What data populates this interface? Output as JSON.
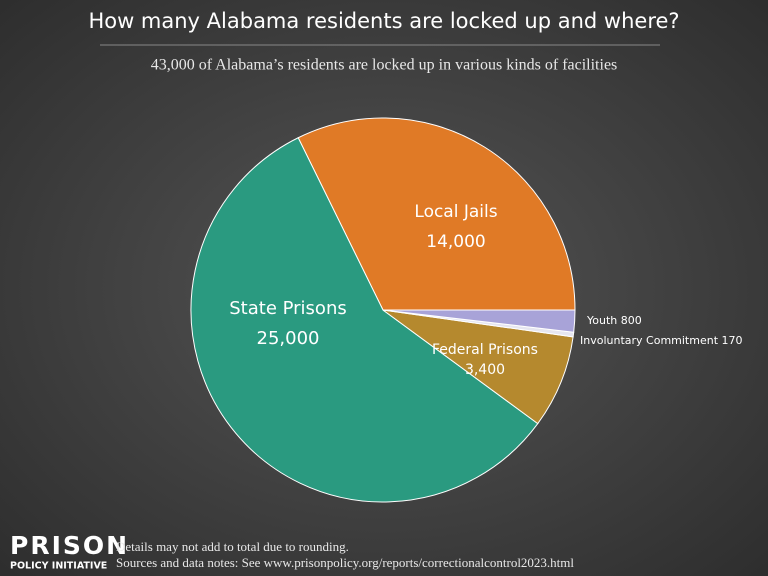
{
  "chart_data": {
    "type": "pie",
    "title": "How many Alabama residents are locked up and where?",
    "subtitle": "43,000 of Alabama’s residents are locked up in various kinds of facilities",
    "categories": [
      "Local Jails",
      "State Prisons",
      "Federal Prisons",
      "Involuntary Commitment",
      "Youth"
    ],
    "values": [
      14000,
      25000,
      3400,
      170,
      800
    ],
    "value_labels": [
      "14,000",
      "25,000",
      "3,400",
      "170",
      "800"
    ],
    "colors": [
      "#e07a26",
      "#2a9a80",
      "#b5892e",
      "#e6e6f0",
      "#a8a3d8"
    ]
  },
  "footer": {
    "logo_top": "PRISON",
    "logo_bottom": "POLICY INITIATIVE",
    "notes": [
      "Details may not add to total due to rounding.",
      "Sources and data notes: See www.prisonpolicy.org/reports/correctionalcontrol2023.html"
    ]
  }
}
